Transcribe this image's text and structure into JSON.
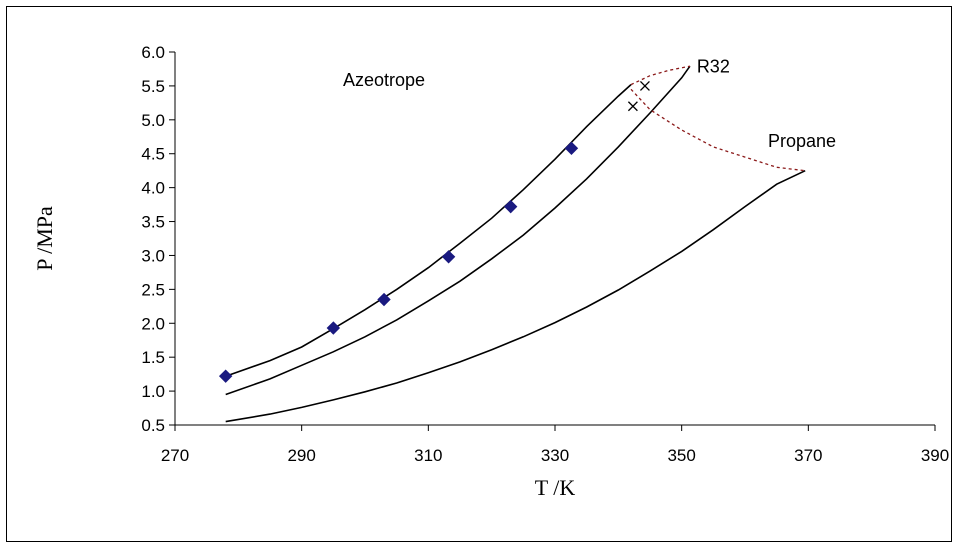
{
  "chart_data": {
    "type": "scatter",
    "title": "",
    "xlabel": "T /K",
    "ylabel": "P /MPa",
    "xlim": [
      270,
      390
    ],
    "ylim": [
      0.5,
      6.0
    ],
    "xticks": [
      270,
      290,
      310,
      330,
      350,
      370,
      390
    ],
    "yticks": [
      "0.5",
      "1.0",
      "1.5",
      "2.0",
      "2.5",
      "3.0",
      "3.5",
      "4.0",
      "4.5",
      "5.0",
      "5.5",
      "6.0"
    ],
    "grid": false,
    "legend": "none",
    "annotations": [
      {
        "text": "Azeotrope",
        "x": 303,
        "y": 5.5
      },
      {
        "text": "R32",
        "x": 355,
        "y": 5.7
      },
      {
        "text": "Propane",
        "x": 369,
        "y": 4.6
      }
    ],
    "series": [
      {
        "kind": "line",
        "color": "#000000",
        "points": [
          [
            278,
            1.22
          ],
          [
            285,
            1.45
          ],
          [
            290,
            1.65
          ],
          [
            295,
            1.92
          ],
          [
            300,
            2.2
          ],
          [
            305,
            2.5
          ],
          [
            310,
            2.82
          ],
          [
            315,
            3.18
          ],
          [
            320,
            3.55
          ],
          [
            325,
            3.97
          ],
          [
            330,
            4.42
          ],
          [
            335,
            4.9
          ],
          [
            340,
            5.35
          ],
          [
            342,
            5.52
          ]
        ]
      },
      {
        "kind": "line",
        "color": "#000000",
        "points": [
          [
            278,
            0.95
          ],
          [
            285,
            1.18
          ],
          [
            290,
            1.38
          ],
          [
            295,
            1.58
          ],
          [
            300,
            1.8
          ],
          [
            305,
            2.05
          ],
          [
            310,
            2.33
          ],
          [
            315,
            2.62
          ],
          [
            320,
            2.95
          ],
          [
            325,
            3.3
          ],
          [
            330,
            3.7
          ],
          [
            335,
            4.13
          ],
          [
            340,
            4.6
          ],
          [
            345,
            5.1
          ],
          [
            350,
            5.62
          ],
          [
            351.3,
            5.79
          ]
        ]
      },
      {
        "kind": "line",
        "color": "#000000",
        "points": [
          [
            278,
            0.55
          ],
          [
            285,
            0.66
          ],
          [
            290,
            0.76
          ],
          [
            295,
            0.87
          ],
          [
            300,
            0.99
          ],
          [
            305,
            1.12
          ],
          [
            310,
            1.27
          ],
          [
            315,
            1.43
          ],
          [
            320,
            1.61
          ],
          [
            325,
            1.8
          ],
          [
            330,
            2.01
          ],
          [
            335,
            2.24
          ],
          [
            340,
            2.49
          ],
          [
            345,
            2.77
          ],
          [
            350,
            3.06
          ],
          [
            355,
            3.38
          ],
          [
            360,
            3.72
          ],
          [
            365,
            4.05
          ],
          [
            369.5,
            4.25
          ]
        ]
      },
      {
        "kind": "dashed",
        "color": "#8b1a1a",
        "points": [
          [
            342,
            5.52
          ],
          [
            345,
            5.65
          ],
          [
            348,
            5.73
          ],
          [
            351.3,
            5.79
          ]
        ]
      },
      {
        "kind": "dashed",
        "color": "#8b1a1a",
        "points": [
          [
            342,
            5.45
          ],
          [
            345,
            5.15
          ],
          [
            350,
            4.85
          ],
          [
            355,
            4.6
          ],
          [
            360,
            4.45
          ],
          [
            365,
            4.3
          ],
          [
            369.5,
            4.25
          ]
        ]
      },
      {
        "kind": "markers",
        "marker": "diamond",
        "color": "#1a1a80",
        "points": [
          [
            278,
            1.22
          ],
          [
            295,
            1.93
          ],
          [
            303,
            2.35
          ],
          [
            313.2,
            2.98
          ],
          [
            323,
            3.72
          ],
          [
            332.6,
            4.58
          ]
        ]
      },
      {
        "kind": "markers",
        "marker": "x",
        "color": "#000000",
        "points": [
          [
            342.3,
            5.2
          ],
          [
            344.2,
            5.5
          ]
        ]
      }
    ]
  }
}
